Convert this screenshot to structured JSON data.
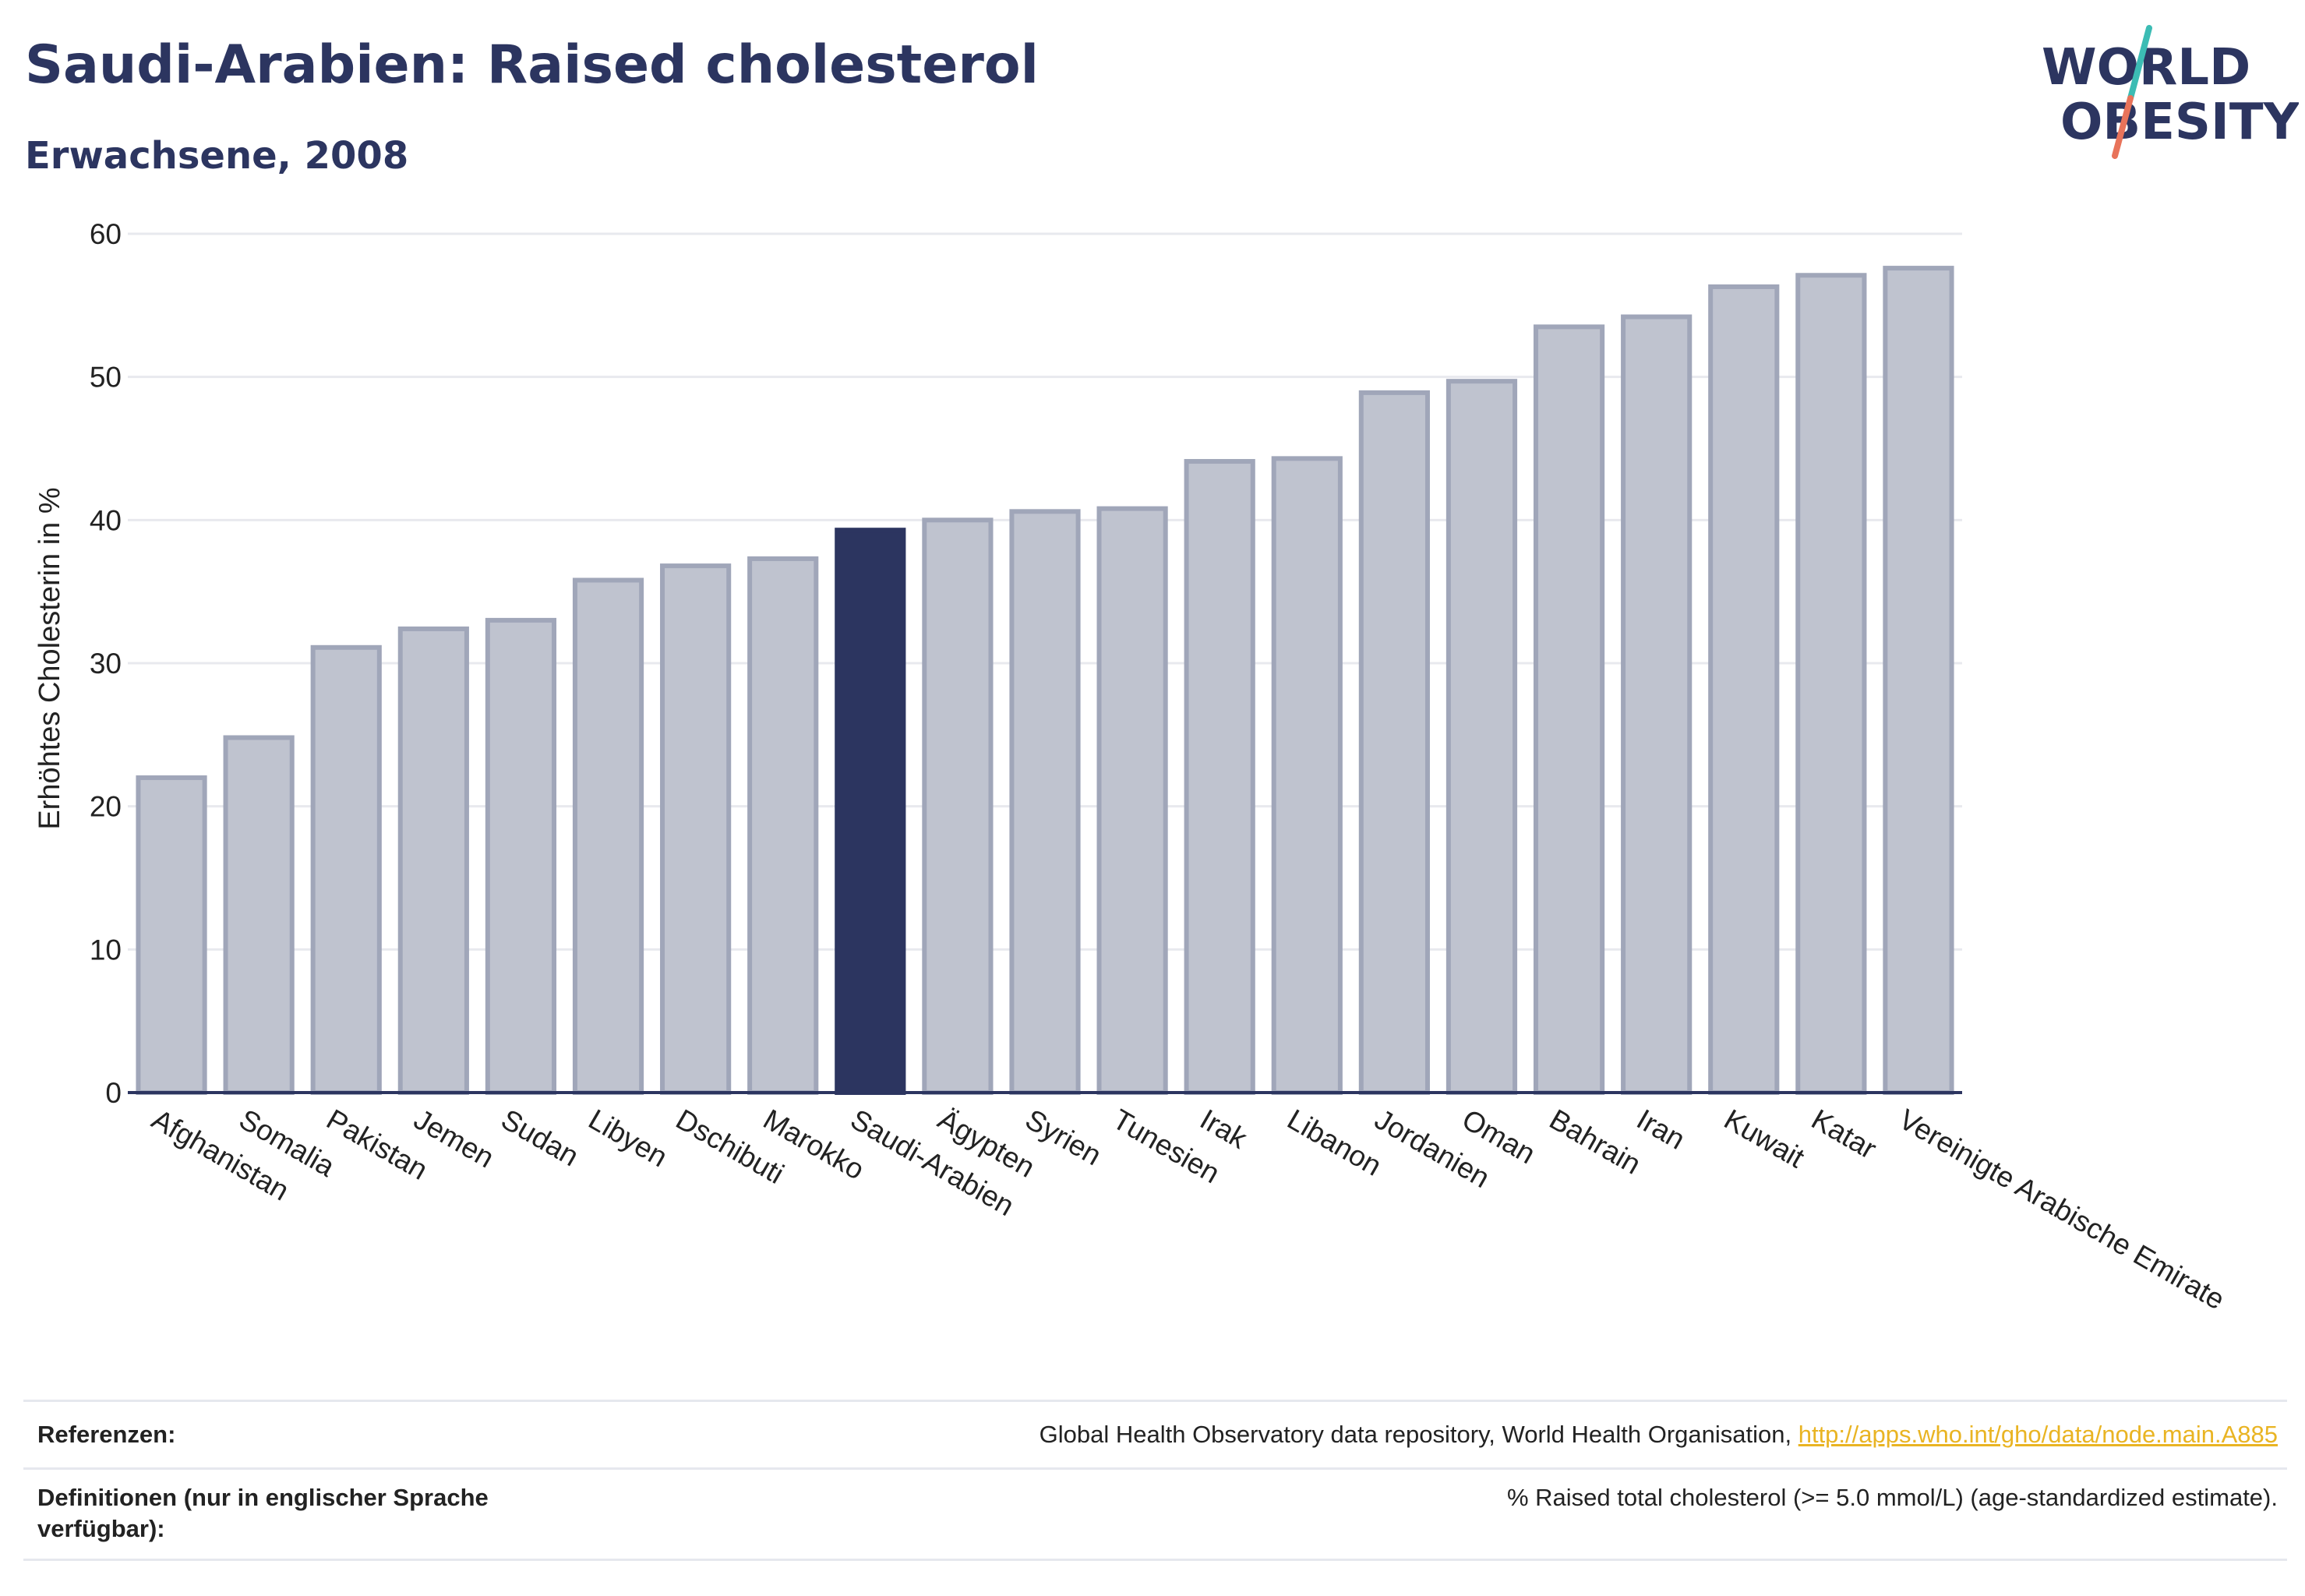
{
  "header": {
    "title": "Saudi-Arabien: Raised cholesterol",
    "subtitle": "Erwachsene, 2008"
  },
  "logo": {
    "line1": "WORLD",
    "line2": "OBESITY",
    "colors": {
      "text": "#2c3560",
      "slash_top": "#3cbcb4",
      "slash_bottom": "#e8735a"
    }
  },
  "colors": {
    "highlight_bar": "#2c3560",
    "bar_fill": "#bfc3cf",
    "bar_stroke": "#a0a6b9",
    "grid": "#e8e9ee",
    "axis": "#2c3560",
    "link": "#e9b423"
  },
  "chart_data": {
    "type": "bar",
    "title": "Saudi-Arabien: Raised cholesterol",
    "subtitle": "Erwachsene, 2008",
    "ylabel": "Erhöhtes Cholesterin in %",
    "xlabel": "",
    "ylim": [
      0,
      60
    ],
    "yticks": [
      0,
      10,
      20,
      30,
      40,
      50,
      60
    ],
    "grid": true,
    "highlight": "Saudi-Arabien",
    "categories": [
      "Afghanistan",
      "Somalia",
      "Pakistan",
      "Jemen",
      "Sudan",
      "Libyen",
      "Dschibuti",
      "Marokko",
      "Saudi-Arabien",
      "Ägypten",
      "Syrien",
      "Tunesien",
      "Irak",
      "Libanon",
      "Jordanien",
      "Oman",
      "Bahrain",
      "Iran",
      "Kuwait",
      "Katar",
      "Vereinigte Arabische Emirate"
    ],
    "values": [
      22.0,
      24.8,
      31.1,
      32.4,
      33.0,
      35.8,
      36.8,
      37.3,
      39.3,
      40.0,
      40.6,
      40.8,
      44.1,
      44.3,
      48.9,
      49.7,
      53.5,
      54.2,
      56.3,
      57.1,
      57.6
    ]
  },
  "footer": {
    "references_label": "Referenzen:",
    "references_text": "Global Health Observatory data repository, World Health Organisation, ",
    "references_link": "http://apps.who.int/gho/data/node.main.A885",
    "definitions_label": "Definitionen (nur in englischer Sprache verfügbar):",
    "definitions_text": "% Raised total cholesterol (>= 5.0 mmol/L) (age-standardized estimate)."
  }
}
